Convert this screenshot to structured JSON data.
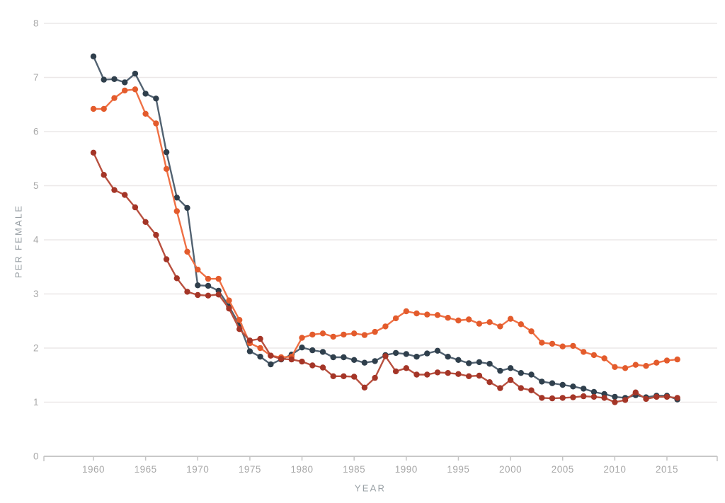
{
  "page": {
    "background": "#ffffff"
  },
  "chart_data": {
    "type": "line",
    "title": "",
    "xlabel": "YEAR",
    "ylabel": "PER FEMALE",
    "grid": true,
    "legend": "none",
    "xlim": [
      1955.3,
      2019.8
    ],
    "ylim": [
      0,
      8
    ],
    "x_ticks": [
      1960,
      1965,
      1970,
      1975,
      1980,
      1985,
      1990,
      1995,
      2000,
      2005,
      2010,
      2015
    ],
    "y_ticks": [
      0,
      1,
      2,
      3,
      4,
      5,
      6,
      7,
      8
    ],
    "x": [
      1960,
      1961,
      1962,
      1963,
      1964,
      1965,
      1966,
      1967,
      1968,
      1969,
      1970,
      1971,
      1972,
      1973,
      1974,
      1975,
      1976,
      1977,
      1978,
      1979,
      1980,
      1981,
      1982,
      1983,
      1984,
      1985,
      1986,
      1987,
      1988,
      1989,
      1990,
      1991,
      1992,
      1993,
      1994,
      1995,
      1996,
      1997,
      1998,
      1999,
      2000,
      2001,
      2002,
      2003,
      2004,
      2005,
      2006,
      2007,
      2008,
      2009,
      2010,
      2011,
      2012,
      2013,
      2014,
      2015,
      2016
    ],
    "series": [
      {
        "name": "dark-slate-series",
        "line_color": "#526271",
        "dot_color": "#2f3f4c",
        "values": [
          7.39,
          6.96,
          6.97,
          6.91,
          7.07,
          6.7,
          6.61,
          5.62,
          4.78,
          4.59,
          3.16,
          3.15,
          3.06,
          2.77,
          2.43,
          1.94,
          1.84,
          1.7,
          1.79,
          1.88,
          2.01,
          1.96,
          1.93,
          1.83,
          1.83,
          1.78,
          1.73,
          1.76,
          1.87,
          1.91,
          1.89,
          1.84,
          1.9,
          1.95,
          1.84,
          1.78,
          1.72,
          1.74,
          1.71,
          1.58,
          1.63,
          1.54,
          1.51,
          1.38,
          1.35,
          1.32,
          1.29,
          1.25,
          1.19,
          1.15,
          1.1,
          1.08,
          1.13,
          1.09,
          1.12,
          1.12,
          1.05
        ]
      },
      {
        "name": "orange-series",
        "line_color": "#ef7044",
        "dot_color": "#e35b2c",
        "values": [
          6.42,
          6.42,
          6.62,
          6.76,
          6.78,
          6.33,
          6.15,
          5.31,
          4.53,
          3.78,
          3.45,
          3.28,
          3.28,
          2.88,
          2.52,
          2.09,
          2.0,
          1.86,
          1.83,
          1.84,
          2.19,
          2.25,
          2.27,
          2.21,
          2.25,
          2.27,
          2.24,
          2.3,
          2.4,
          2.55,
          2.68,
          2.64,
          2.62,
          2.61,
          2.56,
          2.51,
          2.53,
          2.45,
          2.48,
          2.4,
          2.54,
          2.44,
          2.31,
          2.1,
          2.08,
          2.03,
          2.04,
          1.93,
          1.87,
          1.81,
          1.65,
          1.63,
          1.69,
          1.67,
          1.73,
          1.77,
          1.79
        ]
      },
      {
        "name": "dark-red-series",
        "line_color": "#b8503f",
        "dot_color": "#a43527",
        "values": [
          5.61,
          5.2,
          4.92,
          4.83,
          4.6,
          4.33,
          4.09,
          3.64,
          3.29,
          3.04,
          2.98,
          2.97,
          2.99,
          2.73,
          2.35,
          2.14,
          2.17,
          1.86,
          1.8,
          1.79,
          1.75,
          1.68,
          1.64,
          1.48,
          1.48,
          1.47,
          1.27,
          1.45,
          1.85,
          1.57,
          1.63,
          1.51,
          1.51,
          1.55,
          1.54,
          1.52,
          1.48,
          1.49,
          1.37,
          1.26,
          1.41,
          1.26,
          1.22,
          1.08,
          1.07,
          1.08,
          1.09,
          1.11,
          1.1,
          1.08,
          1.0,
          1.04,
          1.18,
          1.06,
          1.1,
          1.1,
          1.08
        ]
      }
    ],
    "style": {
      "grid_color": "#ece8e8",
      "axis_color": "#c9c9c9",
      "tick_color": "#c4c4c4",
      "tick_label_color": "#a8a8a8",
      "axis_title_color": "#99a0a5"
    }
  }
}
